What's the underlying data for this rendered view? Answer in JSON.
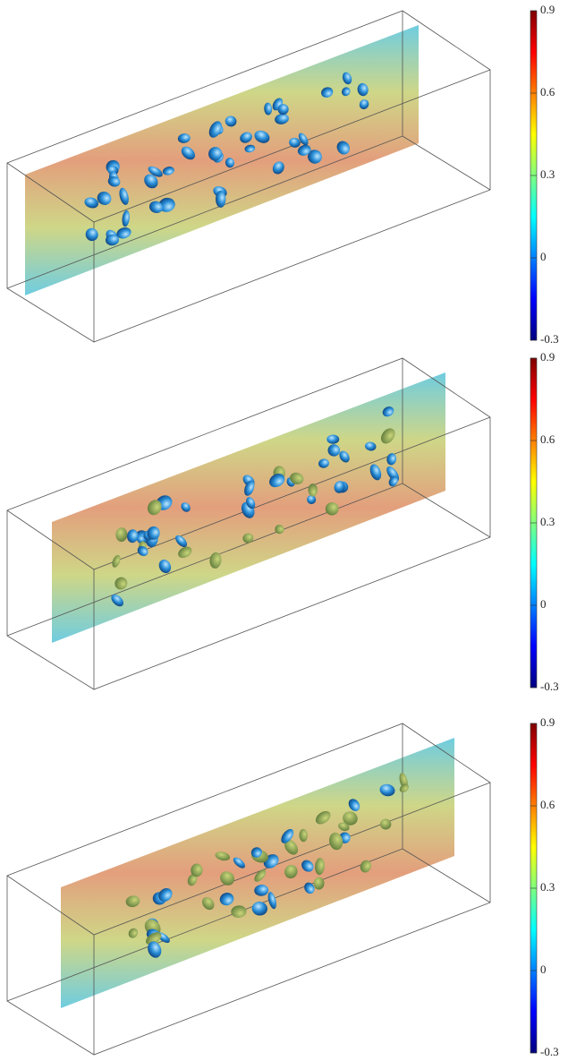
{
  "chart_data": [
    {
      "type": "colorbar",
      "colormap": "jet",
      "ylim": [
        -0.3,
        0.9
      ],
      "yticks": [
        -0.3,
        0,
        0.3,
        0.6,
        0.9
      ]
    },
    {
      "type": "colorbar",
      "colormap": "jet",
      "ylim": [
        -0.3,
        0.9
      ],
      "yticks": [
        -0.3,
        0,
        0.3,
        0.6,
        0.9
      ]
    },
    {
      "type": "colorbar",
      "colormap": "jet",
      "ylim": [
        -0.3,
        0.9
      ],
      "yticks": [
        -0.3,
        0,
        0.3,
        0.6,
        0.9
      ]
    }
  ]
}
